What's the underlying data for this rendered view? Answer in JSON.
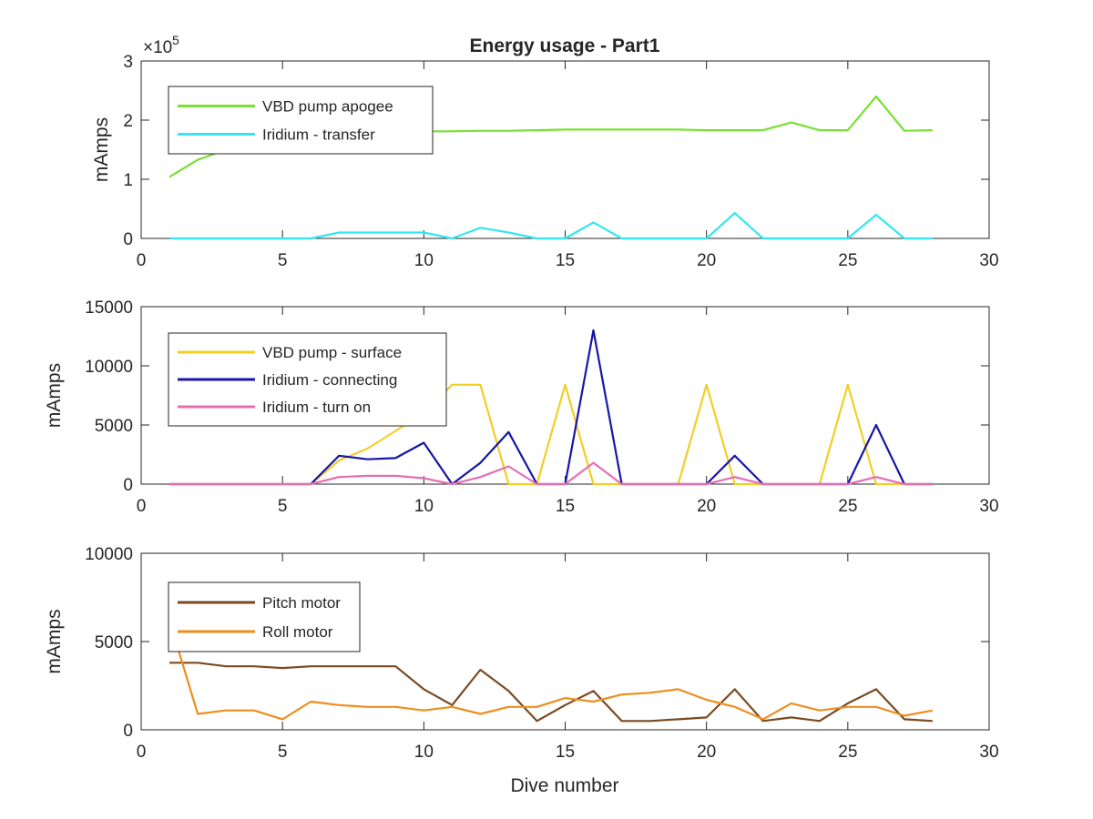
{
  "figure": {
    "title": "Energy usage - Part1",
    "xlabel": "Dive number"
  },
  "chart_data": [
    {
      "type": "line",
      "title": "Energy usage - Part1",
      "xlabel": "",
      "ylabel": "mAmps",
      "xlim": [
        0,
        30
      ],
      "ylim": [
        0,
        300000
      ],
      "xticks": [
        0,
        5,
        10,
        15,
        20,
        25,
        30
      ],
      "yticks": [
        0,
        100000,
        200000,
        300000
      ],
      "ytick_labels": [
        "0",
        "1",
        "2",
        "3"
      ],
      "y_exponent": "×10^5",
      "y_exponent_base": "×10",
      "y_exponent_power": "5",
      "grid": false,
      "legend_position": "top-left",
      "x": [
        1,
        2,
        3,
        4,
        5,
        6,
        7,
        8,
        9,
        10,
        11,
        12,
        13,
        14,
        15,
        16,
        17,
        18,
        19,
        20,
        21,
        22,
        23,
        24,
        25,
        26,
        27,
        28
      ],
      "series": [
        {
          "name": "VBD pump apogee",
          "color": "#77e033",
          "values": [
            104000,
            133000,
            150000,
            160000,
            168000,
            172000,
            175000,
            177000,
            179000,
            181000,
            181000,
            182000,
            182000,
            183000,
            184000,
            184000,
            184000,
            184000,
            184000,
            183000,
            183000,
            183000,
            196000,
            183000,
            183000,
            240000,
            182000,
            183000
          ]
        },
        {
          "name": "Iridium - transfer",
          "color": "#33e6f0",
          "values": [
            0,
            0,
            0,
            0,
            0,
            0,
            10000,
            10000,
            10000,
            10000,
            0,
            18000,
            10000,
            0,
            0,
            27000,
            0,
            0,
            0,
            0,
            43000,
            0,
            0,
            0,
            0,
            40000,
            0,
            0
          ]
        }
      ]
    },
    {
      "type": "line",
      "xlabel": "",
      "ylabel": "mAmps",
      "xlim": [
        0,
        30
      ],
      "ylim": [
        0,
        15000
      ],
      "xticks": [
        0,
        5,
        10,
        15,
        20,
        25,
        30
      ],
      "yticks": [
        0,
        5000,
        10000,
        15000
      ],
      "ytick_labels": [
        "0",
        "5000",
        "10000",
        "15000"
      ],
      "grid": false,
      "legend_position": "top-left",
      "x": [
        1,
        2,
        3,
        4,
        5,
        6,
        7,
        8,
        9,
        10,
        11,
        12,
        13,
        14,
        15,
        16,
        17,
        18,
        19,
        20,
        21,
        22,
        23,
        24,
        25,
        26,
        27,
        28
      ],
      "series": [
        {
          "name": "VBD pump - surface",
          "color": "#f2ce25",
          "values": [
            0,
            0,
            0,
            0,
            0,
            0,
            2000,
            3000,
            4500,
            6000,
            8400,
            8400,
            0,
            0,
            8400,
            0,
            0,
            0,
            0,
            8400,
            0,
            0,
            0,
            0,
            8400,
            0,
            0,
            0
          ]
        },
        {
          "name": "Iridium - connecting",
          "color": "#1616a8",
          "values": [
            0,
            0,
            0,
            0,
            0,
            0,
            2400,
            2100,
            2200,
            3500,
            0,
            1800,
            4400,
            0,
            0,
            13000,
            0,
            0,
            0,
            0,
            2400,
            0,
            0,
            0,
            0,
            5000,
            0,
            0
          ]
        },
        {
          "name": "Iridium - turn on",
          "color": "#e66eb5",
          "values": [
            0,
            0,
            0,
            0,
            0,
            0,
            600,
            700,
            700,
            500,
            0,
            600,
            1500,
            0,
            0,
            1800,
            0,
            0,
            0,
            0,
            600,
            0,
            0,
            0,
            0,
            600,
            0,
            0
          ]
        }
      ]
    },
    {
      "type": "line",
      "xlabel": "Dive number",
      "ylabel": "mAmps",
      "xlim": [
        0,
        30
      ],
      "ylim": [
        0,
        10000
      ],
      "xticks": [
        0,
        5,
        10,
        15,
        20,
        25,
        30
      ],
      "yticks": [
        0,
        5000,
        10000
      ],
      "ytick_labels": [
        "0",
        "5000",
        "10000"
      ],
      "grid": false,
      "legend_position": "top-left",
      "x": [
        1,
        2,
        3,
        4,
        5,
        6,
        7,
        8,
        9,
        10,
        11,
        12,
        13,
        14,
        15,
        16,
        17,
        18,
        19,
        20,
        21,
        22,
        23,
        24,
        25,
        26,
        27,
        28
      ],
      "series": [
        {
          "name": "Pitch motor",
          "color": "#7b4a21",
          "values": [
            3800,
            3800,
            3600,
            3600,
            3500,
            3600,
            3600,
            3600,
            3600,
            2300,
            1400,
            3400,
            2200,
            500,
            1400,
            2200,
            500,
            500,
            600,
            700,
            2300,
            500,
            700,
            500,
            1500,
            2300,
            600,
            500
          ]
        },
        {
          "name": "Roll motor",
          "color": "#ee8e1c",
          "values": [
            6200,
            900,
            1100,
            1100,
            600,
            1600,
            1400,
            1300,
            1300,
            1100,
            1300,
            900,
            1300,
            1300,
            1800,
            1600,
            2000,
            2100,
            2300,
            1700,
            1300,
            600,
            1500,
            1100,
            1300,
            1300,
            800,
            1100
          ]
        }
      ]
    }
  ]
}
